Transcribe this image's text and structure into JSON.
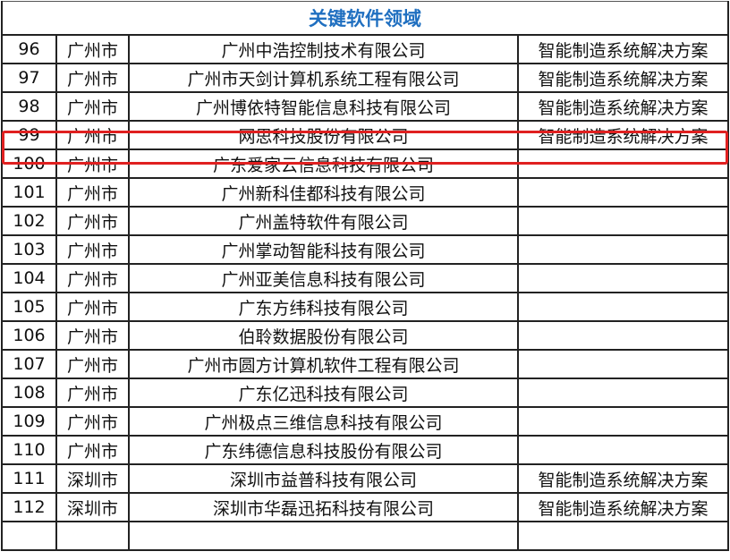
{
  "title": "关键软件领域",
  "highlight_color": "#e02020",
  "title_color": "#1f6fc0",
  "rows": [
    {
      "no": "96",
      "city": "广州市",
      "company": "广州中浩控制技术有限公司",
      "field": "智能制造系统解决方案"
    },
    {
      "no": "97",
      "city": "广州市",
      "company": "广州市天剑计算机系统工程有限公司",
      "field": "智能制造系统解决方案"
    },
    {
      "no": "98",
      "city": "广州市",
      "company": "广州博依特智能信息科技有限公司",
      "field": "智能制造系统解决方案"
    },
    {
      "no": "99",
      "city": "广州市",
      "company": "网思科技股份有限公司",
      "field": "智能制造系统解决方案",
      "highlighted": true
    },
    {
      "no": "100",
      "city": "广州市",
      "company": "广东爱家云信息科技有限公司",
      "field": ""
    },
    {
      "no": "101",
      "city": "广州市",
      "company": "广州新科佳都科技有限公司",
      "field": ""
    },
    {
      "no": "102",
      "city": "广州市",
      "company": "广州盖特软件有限公司",
      "field": ""
    },
    {
      "no": "103",
      "city": "广州市",
      "company": "广州掌动智能科技有限公司",
      "field": ""
    },
    {
      "no": "104",
      "city": "广州市",
      "company": "广州亚美信息科技有限公司",
      "field": ""
    },
    {
      "no": "105",
      "city": "广州市",
      "company": "广东方纬科技有限公司",
      "field": ""
    },
    {
      "no": "106",
      "city": "广州市",
      "company": "伯聆数据股份有限公司",
      "field": ""
    },
    {
      "no": "107",
      "city": "广州市",
      "company": "广州市圆方计算机软件工程有限公司",
      "field": ""
    },
    {
      "no": "108",
      "city": "广州市",
      "company": "广东亿迅科技有限公司",
      "field": ""
    },
    {
      "no": "109",
      "city": "广州市",
      "company": "广州极点三维信息科技有限公司",
      "field": ""
    },
    {
      "no": "110",
      "city": "广州市",
      "company": "广东纬德信息科技股份有限公司",
      "field": ""
    },
    {
      "no": "111",
      "city": "深圳市",
      "company": "深圳市益普科技有限公司",
      "field": "智能制造系统解决方案"
    },
    {
      "no": "112",
      "city": "深圳市",
      "company": "深圳市华磊迅拓科技有限公司",
      "field": "智能制造系统解决方案"
    }
  ]
}
